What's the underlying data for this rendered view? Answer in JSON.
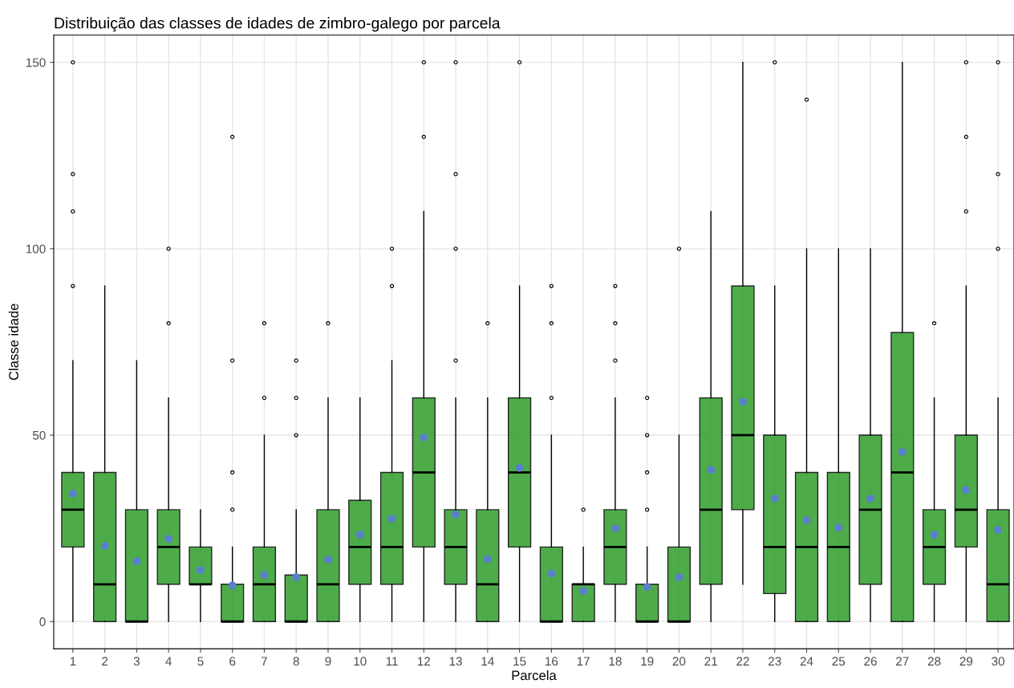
{
  "chart_data": {
    "type": "box",
    "title": "Distribuição das classes de idades de zimbro-galego por parcela",
    "xlabel": "Parcela",
    "ylabel": "Classe idade",
    "categories": [
      "1",
      "2",
      "3",
      "4",
      "5",
      "6",
      "7",
      "8",
      "9",
      "10",
      "11",
      "12",
      "13",
      "14",
      "15",
      "16",
      "17",
      "18",
      "19",
      "20",
      "21",
      "22",
      "23",
      "24",
      "25",
      "26",
      "27",
      "28",
      "29",
      "30"
    ],
    "color": "#2e9e2a",
    "boxes": [
      {
        "low": 0,
        "q1": 20,
        "median": 30,
        "q3": 40,
        "high": 70,
        "mean": 34.3,
        "outliers": [
          90,
          110,
          120,
          150
        ]
      },
      {
        "low": 0,
        "q1": 0,
        "median": 10,
        "q3": 40,
        "high": 90,
        "mean": 20.3
      },
      {
        "low": 0,
        "q1": 0,
        "median": 0,
        "q3": 30,
        "high": 70,
        "mean": 16.2
      },
      {
        "low": 0,
        "q1": 10,
        "median": 20,
        "q3": 30,
        "high": 60,
        "mean": 22.2,
        "outliers": [
          80,
          100
        ]
      },
      {
        "low": 0,
        "q1": 10,
        "median": 10,
        "q3": 20,
        "high": 30,
        "mean": 13.8
      },
      {
        "low": 0,
        "q1": 0,
        "median": 0,
        "q3": 10,
        "high": 20,
        "mean": 9.7,
        "outliers": [
          30,
          40,
          70,
          130
        ]
      },
      {
        "low": 0,
        "q1": 0,
        "median": 10,
        "q3": 20,
        "high": 50,
        "mean": 12.5,
        "outliers": [
          60,
          80
        ]
      },
      {
        "low": 0,
        "q1": 0,
        "median": 0,
        "q3": 12.5,
        "high": 30,
        "mean": 11.9,
        "outliers": [
          50,
          60,
          70
        ]
      },
      {
        "low": 0,
        "q1": 0,
        "median": 10,
        "q3": 30,
        "high": 60,
        "mean": 16.6,
        "outliers": [
          80
        ]
      },
      {
        "low": 0,
        "q1": 10,
        "median": 20,
        "q3": 32.5,
        "high": 60,
        "mean": 23.3
      },
      {
        "low": 0,
        "q1": 10,
        "median": 20,
        "q3": 40,
        "high": 70,
        "mean": 27.6,
        "outliers": [
          90,
          100
        ]
      },
      {
        "low": 0,
        "q1": 20,
        "median": 40,
        "q3": 60,
        "high": 110,
        "mean": 49.4,
        "outliers": [
          130,
          150
        ]
      },
      {
        "low": 0,
        "q1": 10,
        "median": 20,
        "q3": 30,
        "high": 60,
        "mean": 28.7,
        "outliers": [
          70,
          100,
          120,
          150
        ]
      },
      {
        "low": 0,
        "q1": 0,
        "median": 10,
        "q3": 30,
        "high": 60,
        "mean": 16.8,
        "outliers": [
          80
        ]
      },
      {
        "low": 0,
        "q1": 20,
        "median": 40,
        "q3": 60,
        "high": 90,
        "mean": 41.2,
        "outliers": [
          150
        ]
      },
      {
        "low": 0,
        "q1": 0,
        "median": 0,
        "q3": 20,
        "high": 50,
        "mean": 12.9,
        "outliers": [
          60,
          80,
          90
        ]
      },
      {
        "low": 0,
        "q1": 0,
        "median": 10,
        "q3": 10,
        "high": 20,
        "mean": 8.2,
        "outliers": [
          30
        ]
      },
      {
        "low": 0,
        "q1": 10,
        "median": 20,
        "q3": 30,
        "high": 60,
        "mean": 25,
        "outliers": [
          70,
          80,
          90
        ]
      },
      {
        "low": 0,
        "q1": 0,
        "median": 0,
        "q3": 10,
        "high": 20,
        "mean": 9.3,
        "outliers": [
          30,
          40,
          50,
          60
        ]
      },
      {
        "low": 0,
        "q1": 0,
        "median": 0,
        "q3": 20,
        "high": 50,
        "mean": 11.9,
        "outliers": [
          100
        ]
      },
      {
        "low": 0,
        "q1": 10,
        "median": 30,
        "q3": 60,
        "high": 110,
        "mean": 40.7
      },
      {
        "low": 10,
        "q1": 30,
        "median": 50,
        "q3": 90,
        "high": 150,
        "mean": 59
      },
      {
        "low": 0,
        "q1": 7.5,
        "median": 20,
        "q3": 50,
        "high": 90,
        "mean": 33,
        "outliers": [
          150
        ]
      },
      {
        "low": 0,
        "q1": 0,
        "median": 20,
        "q3": 40,
        "high": 100,
        "mean": 27.2,
        "outliers": [
          140
        ]
      },
      {
        "low": 0,
        "q1": 0,
        "median": 20,
        "q3": 40,
        "high": 100,
        "mean": 25.2
      },
      {
        "low": 0,
        "q1": 10,
        "median": 30,
        "q3": 50,
        "high": 100,
        "mean": 33
      },
      {
        "low": 0,
        "q1": 0,
        "median": 40,
        "q3": 77.5,
        "high": 150,
        "mean": 45.5
      },
      {
        "low": 0,
        "q1": 10,
        "median": 20,
        "q3": 30,
        "high": 60,
        "mean": 23.3,
        "outliers": [
          80
        ]
      },
      {
        "low": 0,
        "q1": 20,
        "median": 30,
        "q3": 50,
        "high": 90,
        "mean": 35.3,
        "outliers": [
          110,
          130,
          150
        ]
      },
      {
        "low": 0,
        "q1": 0,
        "median": 10,
        "q3": 30,
        "high": 60,
        "mean": 24.6,
        "outliers": [
          100,
          120,
          150
        ]
      }
    ],
    "ylim": [
      -7.3,
      157.3
    ],
    "yticks": [
      0,
      50,
      100,
      150
    ],
    "grid": true
  }
}
